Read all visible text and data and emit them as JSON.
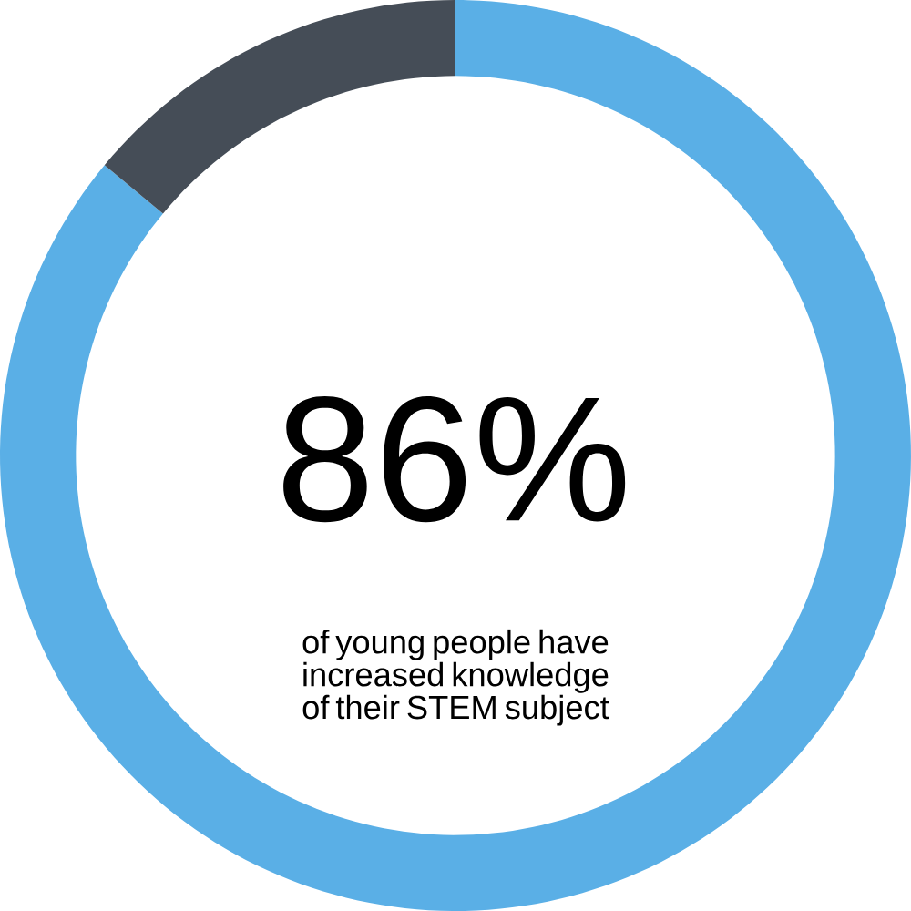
{
  "chart_data": {
    "type": "donut",
    "categories": [
      null,
      null
    ],
    "values": [
      86,
      14
    ],
    "colors": [
      "#5aafe6",
      "#454d57"
    ],
    "value_labels": [
      "86%",
      null
    ],
    "annotations": [
      "of young people have increased knowledge of their STEM subject"
    ]
  }
}
